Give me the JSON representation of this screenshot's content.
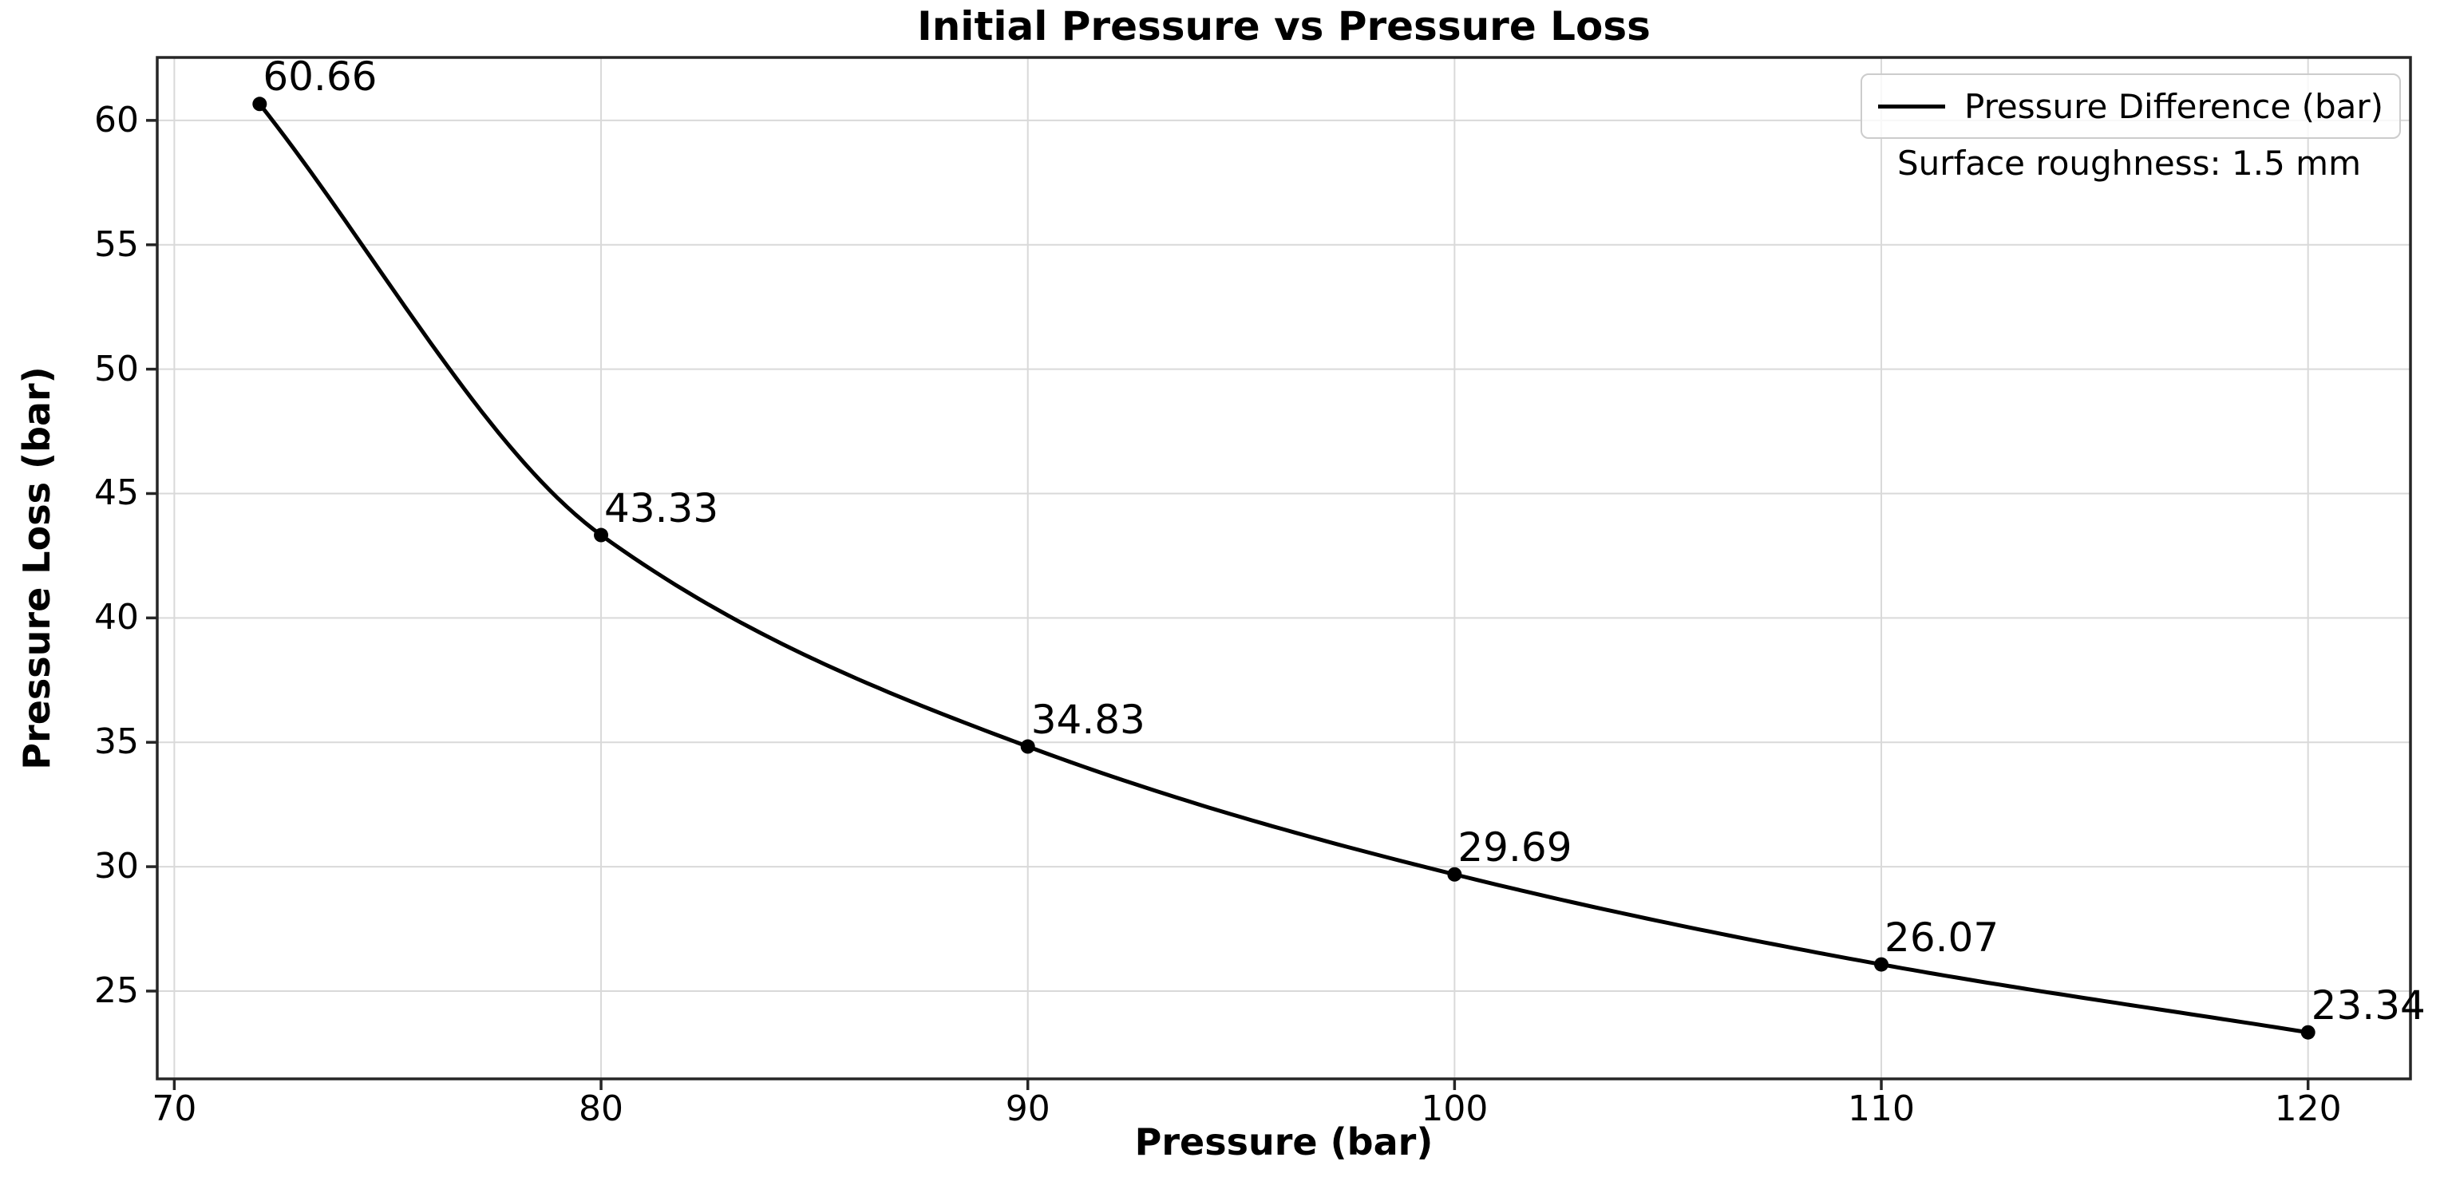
{
  "figure": {
    "title": "Initial Pressure vs Pressure Loss",
    "xlabel": "Pressure (bar)",
    "ylabel": "Pressure Loss (bar)",
    "legend": {
      "series_label": "Pressure Difference (bar)",
      "note": "Surface roughness: 1.5 mm"
    }
  },
  "chart_data": {
    "type": "line",
    "title": "Initial Pressure vs Pressure Loss",
    "xlabel": "Pressure (bar)",
    "ylabel": "Pressure Loss (bar)",
    "series": [
      {
        "name": "Pressure Difference (bar)",
        "x": [
          72,
          80,
          90,
          100,
          110,
          120
        ],
        "y": [
          60.66,
          43.33,
          34.83,
          29.69,
          26.07,
          23.34
        ]
      }
    ],
    "point_labels": [
      "60.66",
      "43.33",
      "34.83",
      "29.69",
      "26.07",
      "23.34"
    ],
    "annotation": "Surface roughness: 1.5 mm",
    "xticks": [
      70,
      80,
      90,
      100,
      110,
      120
    ],
    "yticks": [
      25,
      30,
      35,
      40,
      45,
      50,
      55,
      60
    ],
    "xlim": [
      69.6,
      122.4
    ],
    "ylim": [
      21.47,
      62.53
    ],
    "grid": true,
    "legend_position": "upper right",
    "colors": {
      "line": "#000000",
      "marker": "#000000",
      "grid": "#d9d9d9",
      "spine": "#262626",
      "text": "#000000",
      "legend_border": "#cccccc"
    }
  }
}
